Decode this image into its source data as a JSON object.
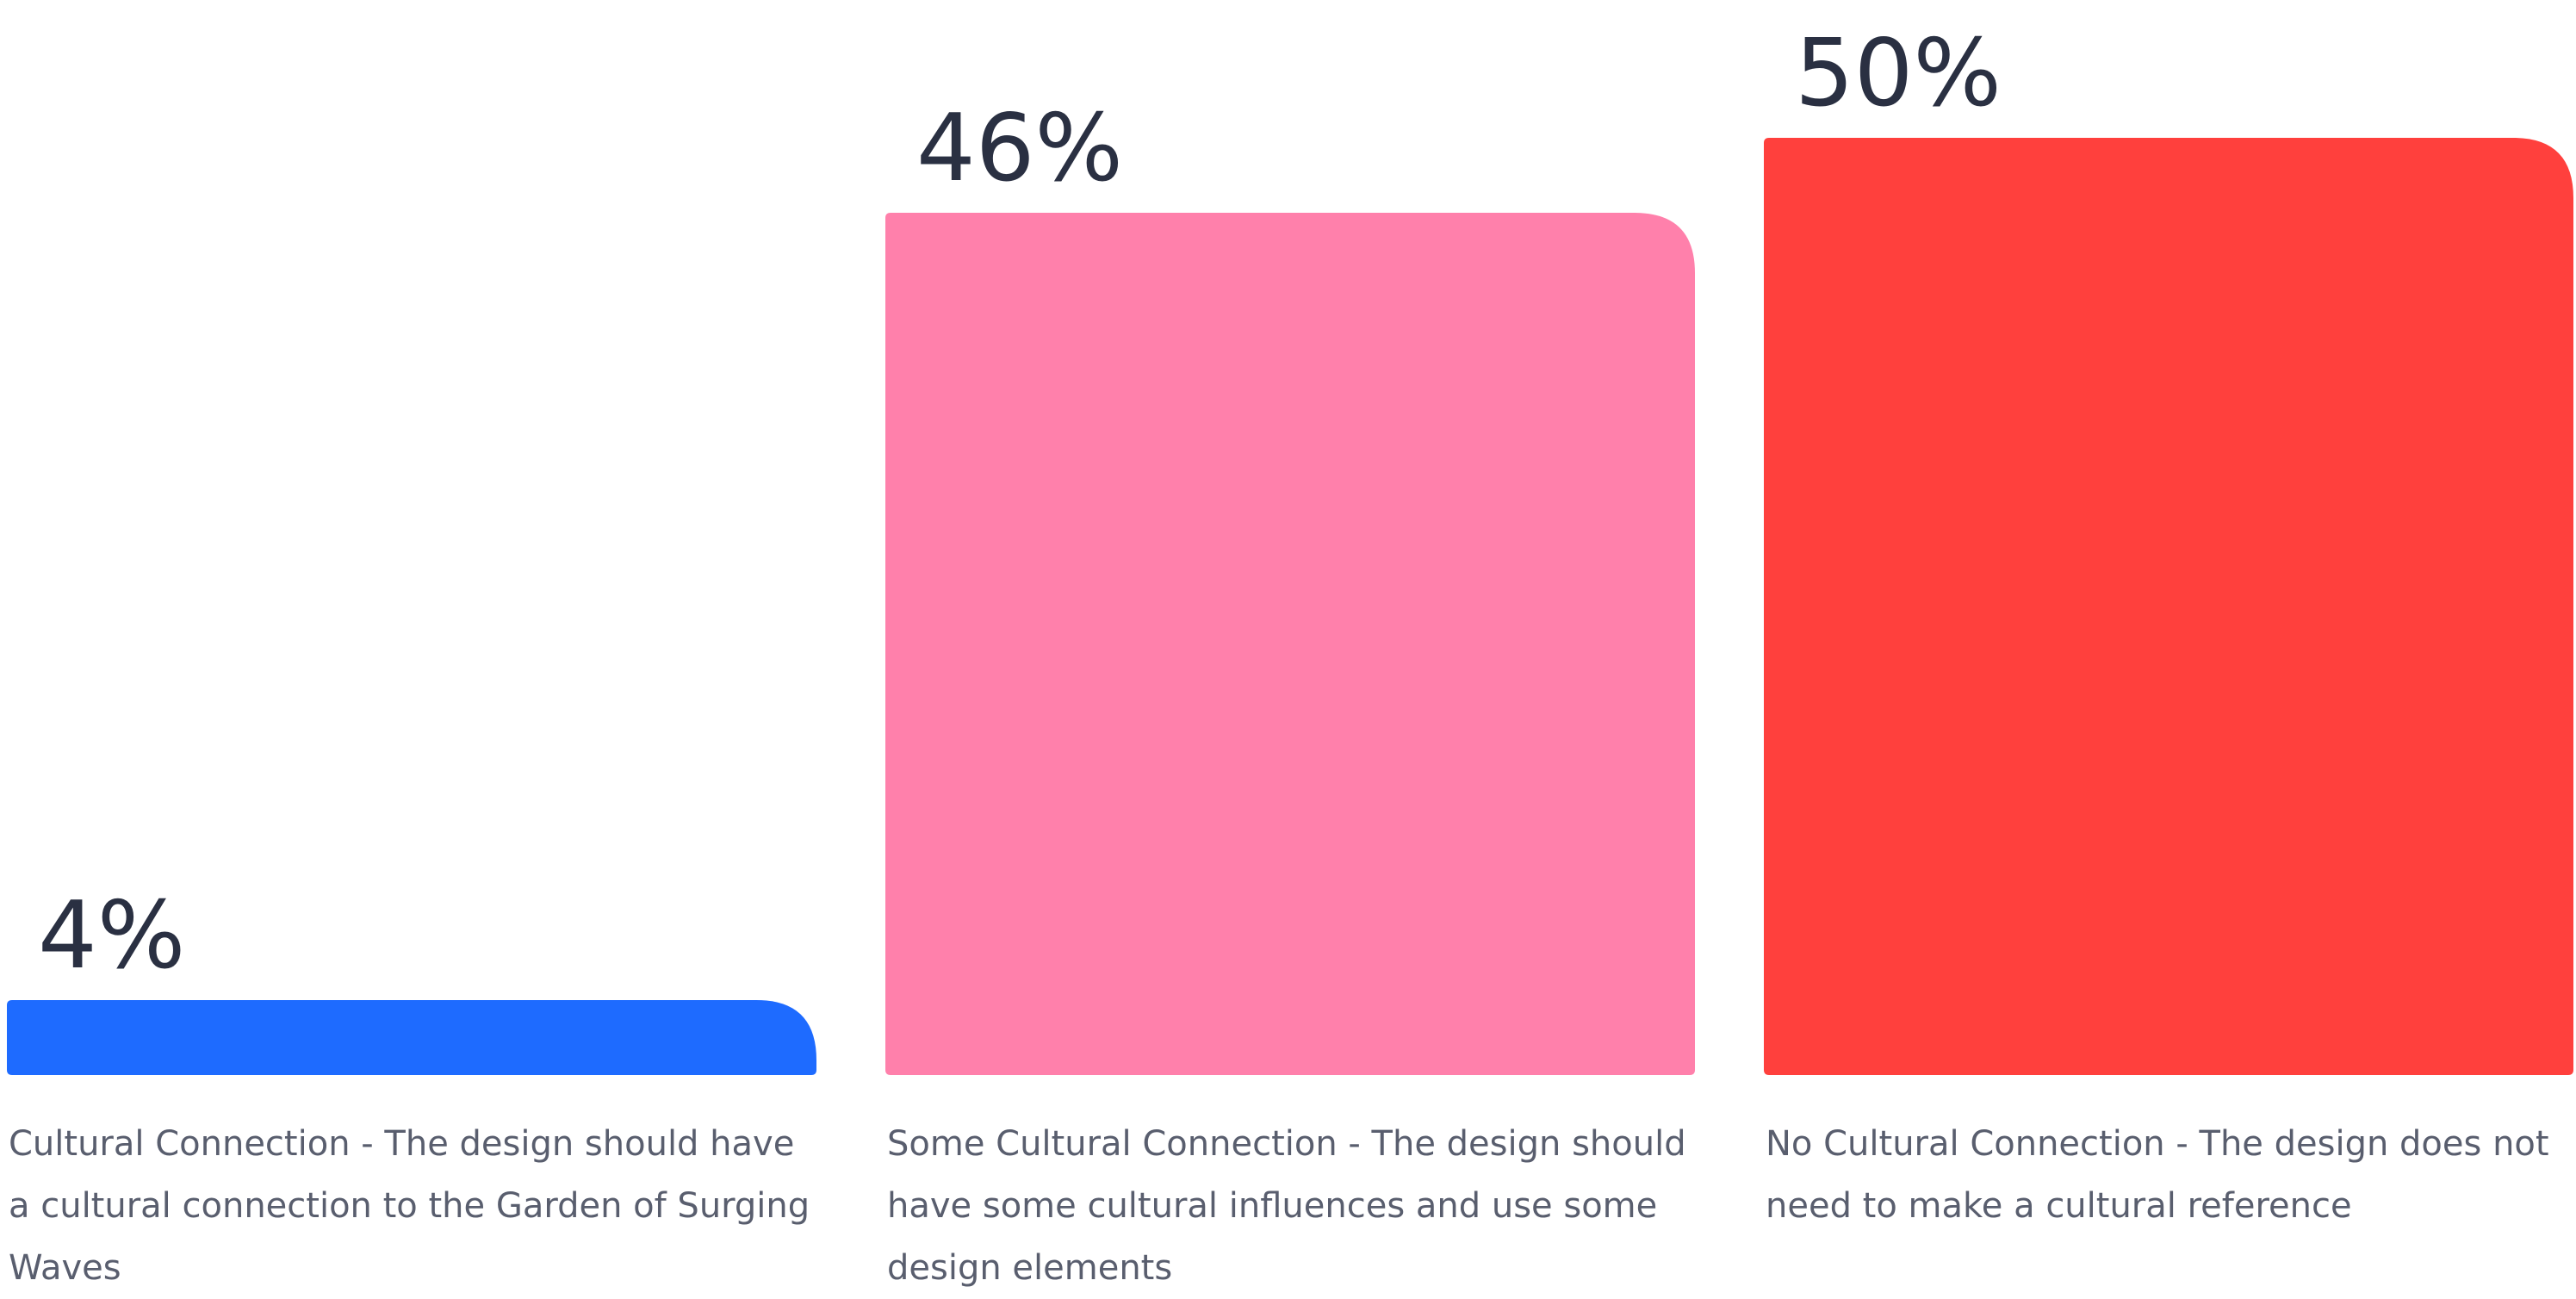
{
  "chart_data": {
    "type": "bar",
    "categories": [
      "Cultural Connection - The design should have a cultural connection to the Garden of Surging Waves",
      "Some Cultural Connection - The design should have some cultural influences and use some design elements",
      "No Cultural Connection - The design does not need to make a cultural reference"
    ],
    "values": [
      4,
      46,
      50
    ],
    "value_labels": [
      "4%",
      "46%",
      "50%"
    ],
    "colors": [
      "#1e6bff",
      "#ff80ab",
      "#ff403d"
    ],
    "ylim": [
      0,
      50
    ],
    "grid": false,
    "legend": "none"
  }
}
